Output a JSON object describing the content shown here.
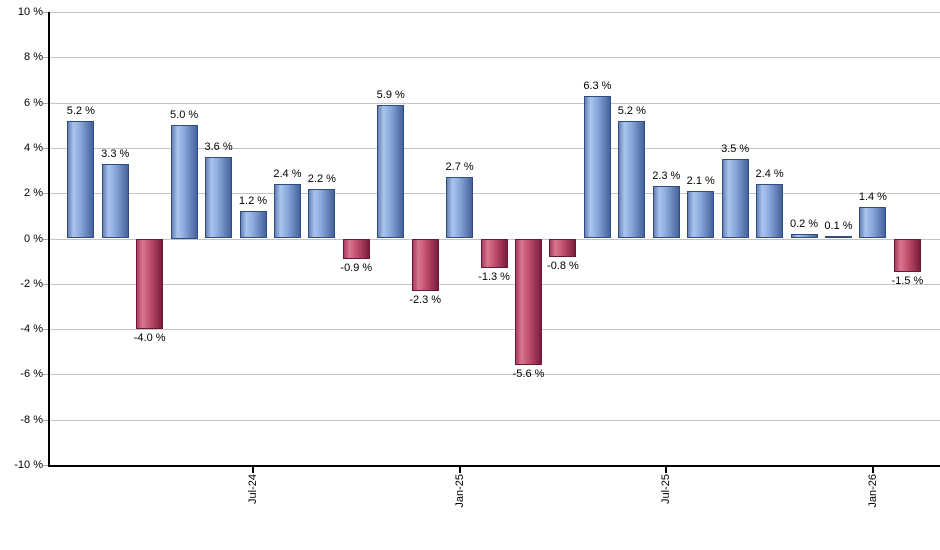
{
  "chart_data": {
    "type": "bar",
    "title": "",
    "xlabel": "",
    "ylabel": "",
    "ylim": [
      -10,
      10
    ],
    "y_tick_step": 2,
    "grid": true,
    "y_tick_labels": [
      "10 %",
      "8 %",
      "6 %",
      "4 %",
      "2 %",
      "0 %",
      "-2 %",
      "-4 %",
      "-6 %",
      "-8 %",
      "-10 %"
    ],
    "y_tick_values": [
      10,
      8,
      6,
      4,
      2,
      0,
      -2,
      -4,
      -6,
      -8,
      -10
    ],
    "x_ticks": [
      {
        "label": "Jul-24",
        "bar_index": 5
      },
      {
        "label": "Jan-25",
        "bar_index": 11
      },
      {
        "label": "Jul-25",
        "bar_index": 17
      },
      {
        "label": "Jan-26",
        "bar_index": 23
      }
    ],
    "values": [
      5.2,
      3.3,
      -4.0,
      5.0,
      3.6,
      1.2,
      2.4,
      2.2,
      -0.9,
      5.9,
      -2.3,
      2.7,
      -1.3,
      -5.6,
      -0.8,
      6.3,
      5.2,
      2.3,
      2.1,
      3.5,
      2.4,
      0.2,
      0.1,
      1.4,
      -1.5
    ],
    "bar_value_labels": [
      "5.2 %",
      "3.3 %",
      "-4.0 %",
      "5.0 %",
      "3.6 %",
      "1.2 %",
      "2.4 %",
      "2.2 %",
      "-0.9 %",
      "5.9 %",
      "-2.3 %",
      "2.7 %",
      "-1.3 %",
      "-5.6 %",
      "-0.8 %",
      "6.3 %",
      "5.2 %",
      "2.3 %",
      "2.1 %",
      "3.5 %",
      "2.4 %",
      "0.2 %",
      "0.1 %",
      "1.4 %",
      "-1.5 %"
    ],
    "colors": {
      "positive_bar_light": "#a9c5ee",
      "positive_bar_dark": "#44639c",
      "negative_bar_light": "#d9768f",
      "negative_bar_dark": "#7c1c3c",
      "gridline": "#c4c4c4",
      "axis": "#000000",
      "label_text": "#000000"
    }
  }
}
